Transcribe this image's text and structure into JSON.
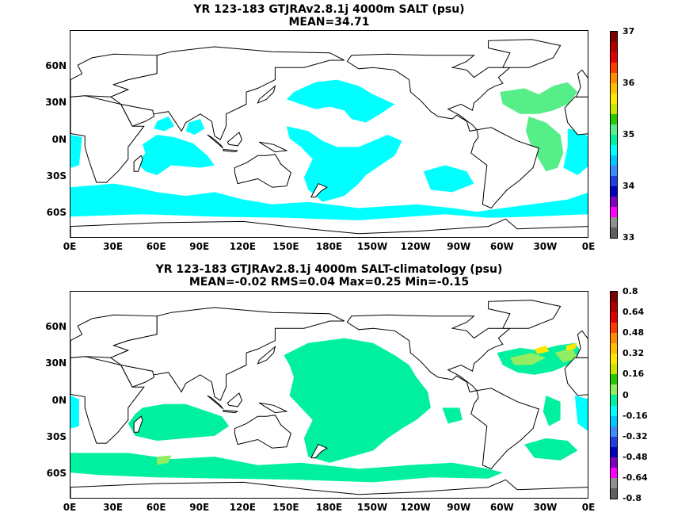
{
  "panels": [
    {
      "title_line1": "YR 123-183 GTJRAv2.8.1j 4000m SALT (psu)",
      "title_line2": "MEAN=34.71",
      "fill_color": "#00ffff",
      "colorbar_ticks": [
        "37",
        "36",
        "35",
        "34",
        "33"
      ],
      "colorbar_colors": [
        "#7f0000",
        "#b00000",
        "#e00000",
        "#ff3c00",
        "#ff8c00",
        "#ffbe00",
        "#ffe600",
        "#c8e600",
        "#28c800",
        "#55ee88",
        "#00f0a0",
        "#00ffff",
        "#00c8ff",
        "#3c8cff",
        "#2040e0",
        "#0000c0",
        "#8000c0",
        "#ff00ff",
        "#909090",
        "#606060"
      ]
    },
    {
      "title_line1": "YR 123-183 GTJRAv2.8.1j 4000m SALT-climatology (psu)",
      "title_line2": "MEAN=-0.02   RMS=0.04   Max=0.25   Min=-0.15",
      "fill_color": "#00f0a0",
      "colorbar_ticks": [
        "0.8",
        "0.64",
        "0.48",
        "0.32",
        "0.16",
        "0",
        "-0.16",
        "-0.32",
        "-0.48",
        "-0.64",
        "-0.8"
      ],
      "colorbar_colors": [
        "#7f0000",
        "#b00000",
        "#e00000",
        "#ff3c00",
        "#ff8c00",
        "#ffbe00",
        "#ffe600",
        "#c8e600",
        "#28c800",
        "#90ee60",
        "#00f0a0",
        "#00ffff",
        "#00c8ff",
        "#3c8cff",
        "#2040e0",
        "#0000c0",
        "#8000c0",
        "#ff00ff",
        "#909090",
        "#606060"
      ]
    }
  ],
  "lat_labels": [
    "60N",
    "30N",
    "0N",
    "30S",
    "60S"
  ],
  "lon_labels": [
    "0E",
    "30E",
    "60E",
    "90E",
    "120E",
    "150E",
    "180E",
    "150W",
    "120W",
    "90W",
    "60W",
    "30W",
    "0E"
  ]
}
